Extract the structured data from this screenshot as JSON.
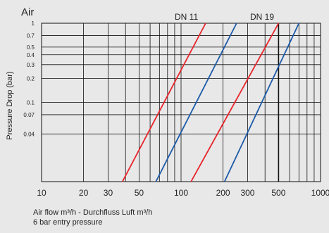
{
  "chart_data": {
    "type": "line",
    "title": "Air",
    "ylabel": "Pressure Drop (bar)",
    "xlabel": "Air flow m³/h - Durchfluss Luft m³/h",
    "subtitle": "6 bar entry pressure",
    "x_scale": "log",
    "y_scale": "log",
    "xlim": [
      10,
      1000
    ],
    "ylim": [
      0.01,
      1
    ],
    "x_ticks": [
      10,
      20,
      30,
      50,
      100,
      200,
      300,
      500,
      1000
    ],
    "x_tick_labels": [
      "10",
      "20",
      "30",
      "50",
      "100",
      "200",
      "300",
      "500",
      "1000"
    ],
    "y_ticks": [
      1,
      0.7,
      0.5,
      0.4,
      0.3,
      0.2,
      0.1,
      0.07,
      0.04
    ],
    "y_tick_labels": [
      "1",
      "0.7",
      "0.5",
      "0.4",
      "0.3",
      "0.2",
      "0.1",
      "0.07",
      "0.04"
    ],
    "grid": true,
    "series_labels": [
      "DN 11",
      "DN 19"
    ],
    "series": [
      {
        "color": "#e8242a",
        "x": [
          38,
          150
        ],
        "y": [
          0.01,
          1
        ]
      },
      {
        "color": "#1c5aa8",
        "x": [
          66,
          250
        ],
        "y": [
          0.01,
          1
        ]
      },
      {
        "color": "#e8242a",
        "x": [
          118,
          500
        ],
        "y": [
          0.01,
          1
        ]
      },
      {
        "color": "#1c5aa8",
        "x": [
          205,
          700
        ],
        "y": [
          0.01,
          1
        ]
      }
    ]
  }
}
